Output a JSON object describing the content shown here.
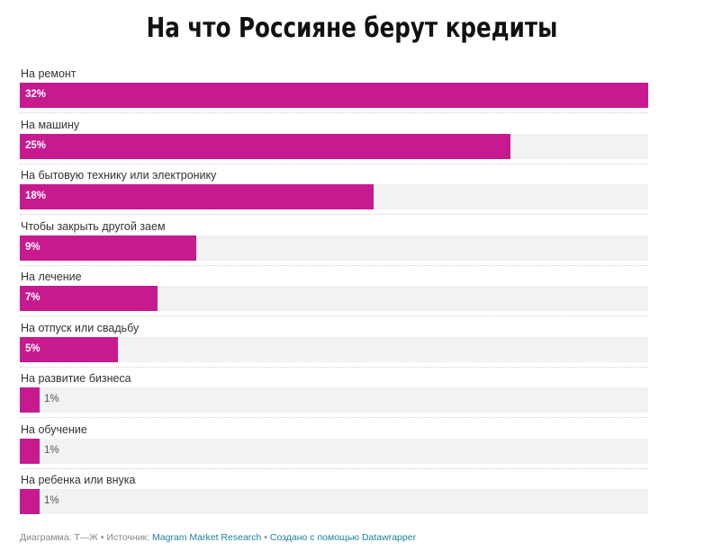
{
  "title": "На что Россияне берут кредиты",
  "chart_data": {
    "type": "bar",
    "orientation": "horizontal",
    "title": "На что Россияне берут кредиты",
    "categories": [
      "На ремонт",
      "На машину",
      "На бытовую технику или электронику",
      "Чтобы закрыть другой заем",
      "На лечение",
      "На отпуск или свадьбу",
      "На развитие бизнеса",
      "На обучение",
      "На ребенка или внука"
    ],
    "values": [
      32,
      25,
      18,
      9,
      7,
      5,
      1,
      1,
      1
    ],
    "value_labels": [
      "32%",
      "25%",
      "18%",
      "9%",
      "7%",
      "5%",
      "1%",
      "1%",
      "1%"
    ],
    "unit": "%",
    "xlim": [
      0,
      32
    ],
    "bar_color": "#c71a8e",
    "track_color": "#f2f2f2"
  },
  "footer": {
    "prefix": "Диаграмма: Т—Ж • Источник: ",
    "source": "Magram Market Research",
    "separator": " • ",
    "credit": "Создано с помощью Datawrapper"
  }
}
